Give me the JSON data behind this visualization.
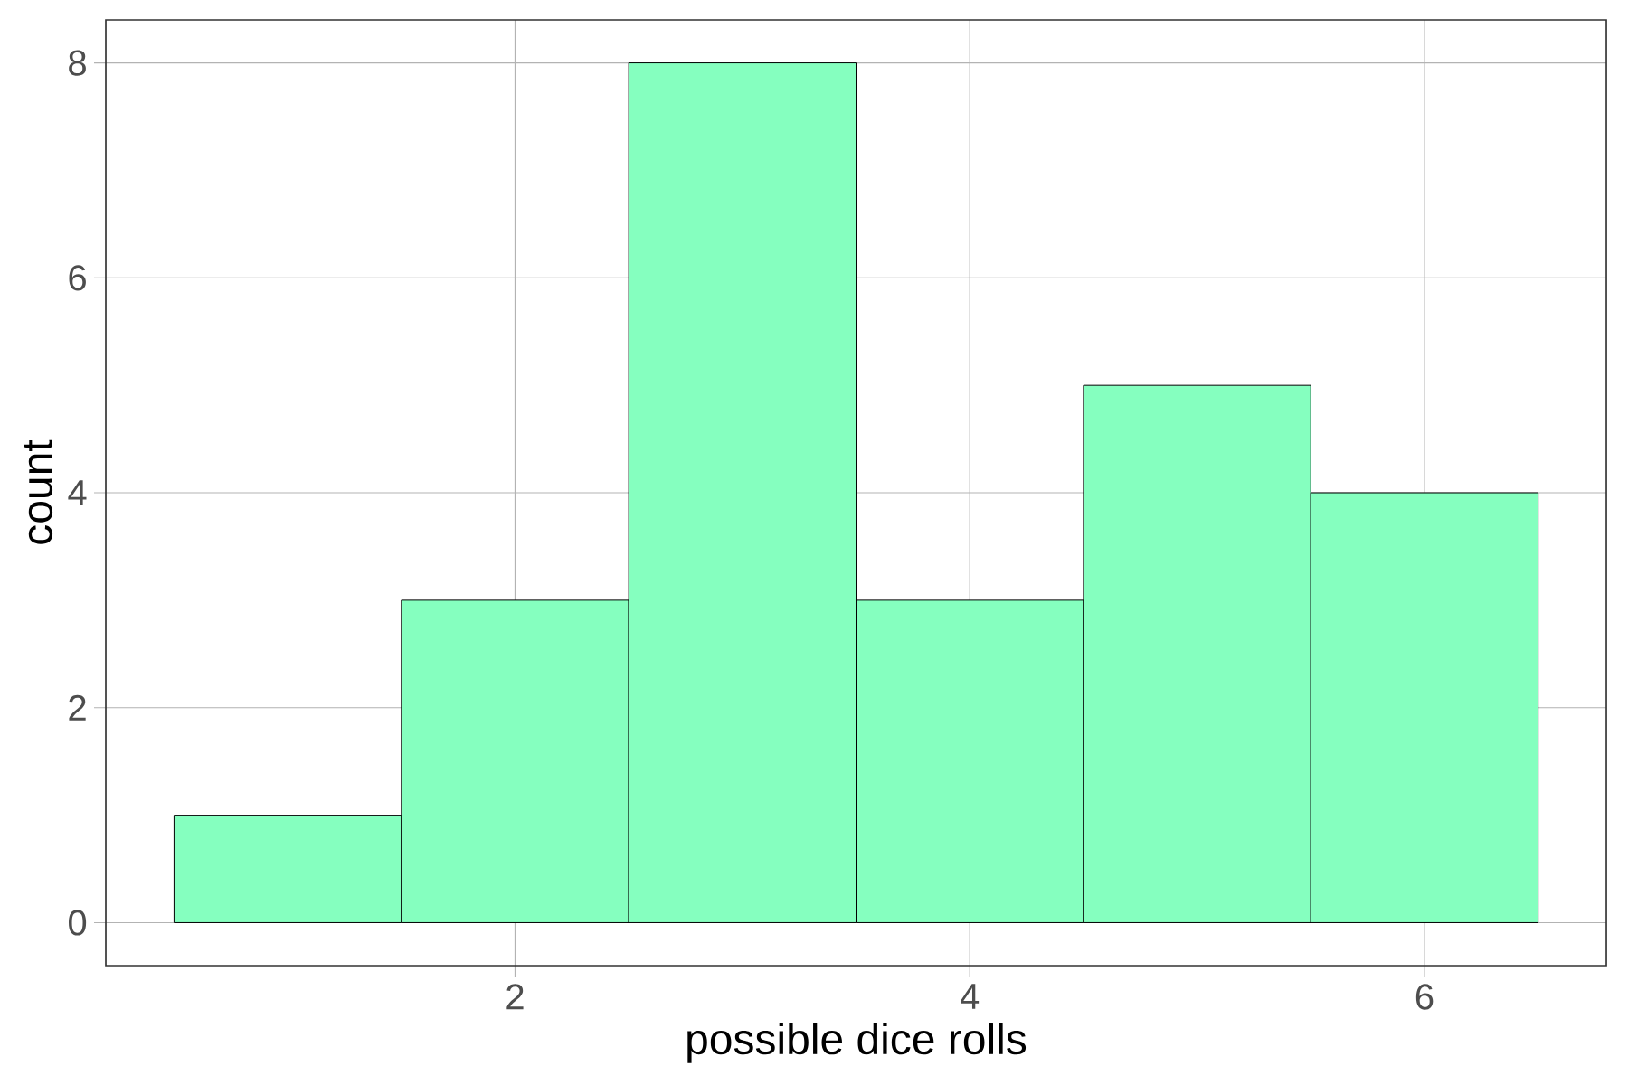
{
  "chart_data": {
    "type": "histogram",
    "xlabel": "possible dice rolls",
    "ylabel": "count",
    "bins": [
      0.5,
      1.5,
      2.5,
      3.5,
      4.5,
      5.5,
      6.5
    ],
    "values": [
      1,
      3,
      8,
      3,
      5,
      4
    ],
    "color": "#85ffbf",
    "xlim": [
      0.2,
      6.8
    ],
    "ylim": [
      -0.4,
      8.4
    ],
    "xticks": [
      2,
      4,
      6
    ],
    "yticks": [
      0,
      2,
      4,
      6,
      8
    ],
    "grid": true
  }
}
